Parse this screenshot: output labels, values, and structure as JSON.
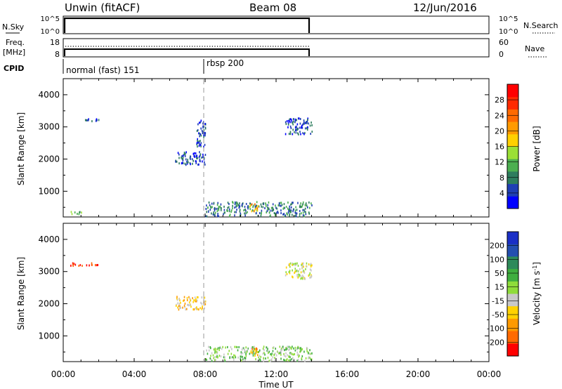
{
  "header": {
    "title": "Unwin (fitACF)",
    "beam": "Beam 08",
    "date": "12/Jun/2016"
  },
  "panels": {
    "nsky": {
      "label": "N.Sky",
      "left_ticks": [
        "10^5",
        "10^0"
      ],
      "right_ticks": [
        "10^5",
        "10^0"
      ],
      "right_label": "N.Search"
    },
    "freq": {
      "label_top": "Freq.",
      "label_bottom": "[MHz]",
      "left_ticks": [
        "18",
        "8"
      ],
      "right_ticks": [
        "60",
        "0"
      ],
      "right_label": "Nave"
    },
    "cpid": {
      "label": "CPID",
      "modes": [
        {
          "text": "normal (fast) 151",
          "start": "00:00"
        },
        {
          "text": "rbsp 200",
          "start": "08:00"
        }
      ]
    }
  },
  "axes": {
    "y_label": "Slant Range [km]",
    "y_ticks": [
      "1000",
      "2000",
      "3000",
      "4000"
    ],
    "x_ticks": [
      "00:00",
      "04:00",
      "08:00",
      "12:00",
      "16:00",
      "20:00",
      "00:00"
    ],
    "x_label": "Time UT"
  },
  "colorbars": {
    "power": {
      "label": "Power [dB]",
      "ticks": [
        "4",
        "8",
        "12",
        "16",
        "20",
        "24",
        "28"
      ],
      "colors": [
        "#0000ff",
        "#1f3fb4",
        "#2e7d5e",
        "#4caf50",
        "#9be036",
        "#ffd000",
        "#ff9a00",
        "#ff6a00",
        "#ff2a00",
        "#ff0000"
      ]
    },
    "velocity": {
      "label_main": "Velocity [m s",
      "label_sup": "-1",
      "label_end": "]",
      "ticks": [
        "200",
        "100",
        "50",
        "15",
        "-15",
        "-50",
        "-100",
        "-200"
      ],
      "colors": [
        "#1b2fc6",
        "#244fb0",
        "#2e8a5a",
        "#3fae3f",
        "#8fdc3a",
        "#c8c8c8",
        "#ffd200",
        "#ff9a00",
        "#ff6a00",
        "#ff0000"
      ]
    }
  },
  "chart_data": [
    {
      "type": "heatmap",
      "name": "power",
      "x_range_hours": [
        0,
        24
      ],
      "ylim": [
        200,
        4500
      ],
      "observation_window_hours": [
        0.3,
        14.0
      ],
      "scatter_clusters": [
        {
          "t": [
            0.3,
            1.0
          ],
          "r": [
            300,
            400
          ],
          "level": 3
        },
        {
          "t": [
            1.0,
            2.0
          ],
          "r": [
            3200,
            3300
          ],
          "level": 1
        },
        {
          "t": [
            6.3,
            8.0
          ],
          "r": [
            1850,
            2250
          ],
          "level": 1
        },
        {
          "t": [
            7.5,
            8.0
          ],
          "r": [
            2400,
            3300
          ],
          "level": 1
        },
        {
          "t": [
            8.0,
            14.0
          ],
          "r": [
            250,
            700
          ],
          "level": 2
        },
        {
          "t": [
            10.5,
            11.0
          ],
          "r": [
            400,
            650
          ],
          "level": 6
        },
        {
          "t": [
            12.5,
            14.0
          ],
          "r": [
            2800,
            3300
          ],
          "level": 1
        }
      ]
    },
    {
      "type": "heatmap",
      "name": "velocity",
      "x_range_hours": [
        0,
        24
      ],
      "ylim": [
        200,
        4500
      ],
      "observation_window_hours": [
        0.3,
        14.0
      ],
      "scatter_clusters": [
        {
          "t": [
            0.3,
            2.0
          ],
          "r": [
            3200,
            3300
          ],
          "level": 9
        },
        {
          "t": [
            6.3,
            8.0
          ],
          "r": [
            1850,
            2250
          ],
          "level": 6
        },
        {
          "t": [
            8.0,
            14.0
          ],
          "r": [
            250,
            700
          ],
          "level": 4
        },
        {
          "t": [
            10.5,
            11.0
          ],
          "r": [
            400,
            650
          ],
          "level": 7
        },
        {
          "t": [
            12.5,
            14.0
          ],
          "r": [
            2800,
            3300
          ],
          "level": 5
        }
      ]
    }
  ]
}
